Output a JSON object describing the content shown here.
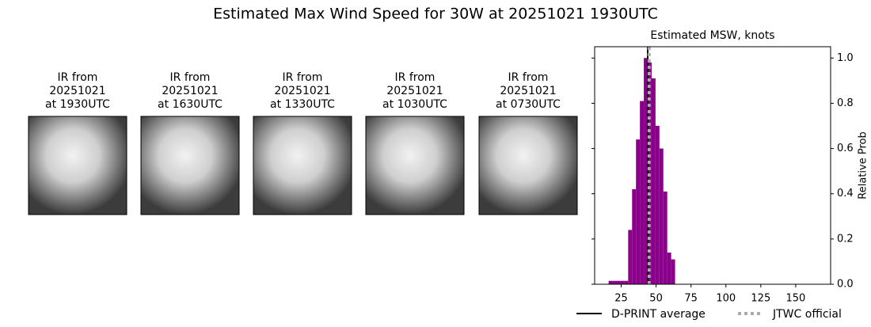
{
  "title": "Estimated Max Wind Speed for 30W at 20251021 1930UTC",
  "panels": [
    {
      "title": [
        "IR from",
        "20251021",
        "at 1930UTC"
      ]
    },
    {
      "title": [
        "IR from",
        "20251021",
        "at 1630UTC"
      ]
    },
    {
      "title": [
        "IR from",
        "20251021",
        "at 1330UTC"
      ]
    },
    {
      "title": [
        "IR from",
        "20251021",
        "at 1030UTC"
      ]
    },
    {
      "title": [
        "IR from",
        "20251021",
        "at 0730UTC"
      ]
    }
  ],
  "chart_data": {
    "type": "histogram",
    "title": "Estimated MSW, knots",
    "y_label": "Relative Prob",
    "bins": [
      16,
      18.8,
      21.6,
      24.4,
      27.2,
      30,
      32.8,
      35.6,
      38.4,
      41.2,
      44,
      46.8,
      49.6,
      52.4,
      55.2,
      58,
      60.8,
      63.6
    ],
    "values": [
      0.015,
      0.015,
      0.015,
      0.015,
      0.015,
      0.24,
      0.42,
      0.64,
      0.81,
      1.0,
      0.98,
      0.91,
      0.7,
      0.6,
      0.41,
      0.14,
      0.11
    ],
    "color": "#8b008b",
    "xlim": [
      6,
      175
    ],
    "ylim": [
      0,
      1.05
    ],
    "xticks": [
      25,
      50,
      75,
      100,
      125,
      150
    ],
    "yticks": [
      {
        "value": 0,
        "label": "0.0"
      },
      {
        "value": 0.2,
        "label": "0.2"
      },
      {
        "value": 0.4,
        "label": "0.4"
      },
      {
        "value": 0.6,
        "label": "0.6"
      },
      {
        "value": 0.8,
        "label": "0.8"
      },
      {
        "value": 1,
        "label": "1.0"
      }
    ],
    "y_axis_side": "right",
    "lines": [
      {
        "name": "D-PRINT average",
        "value": 44,
        "color": "#000000",
        "style": "solid"
      },
      {
        "name": "JTWC official",
        "value": 45,
        "color": "#aaaaaa",
        "style": "dotted"
      }
    ]
  }
}
